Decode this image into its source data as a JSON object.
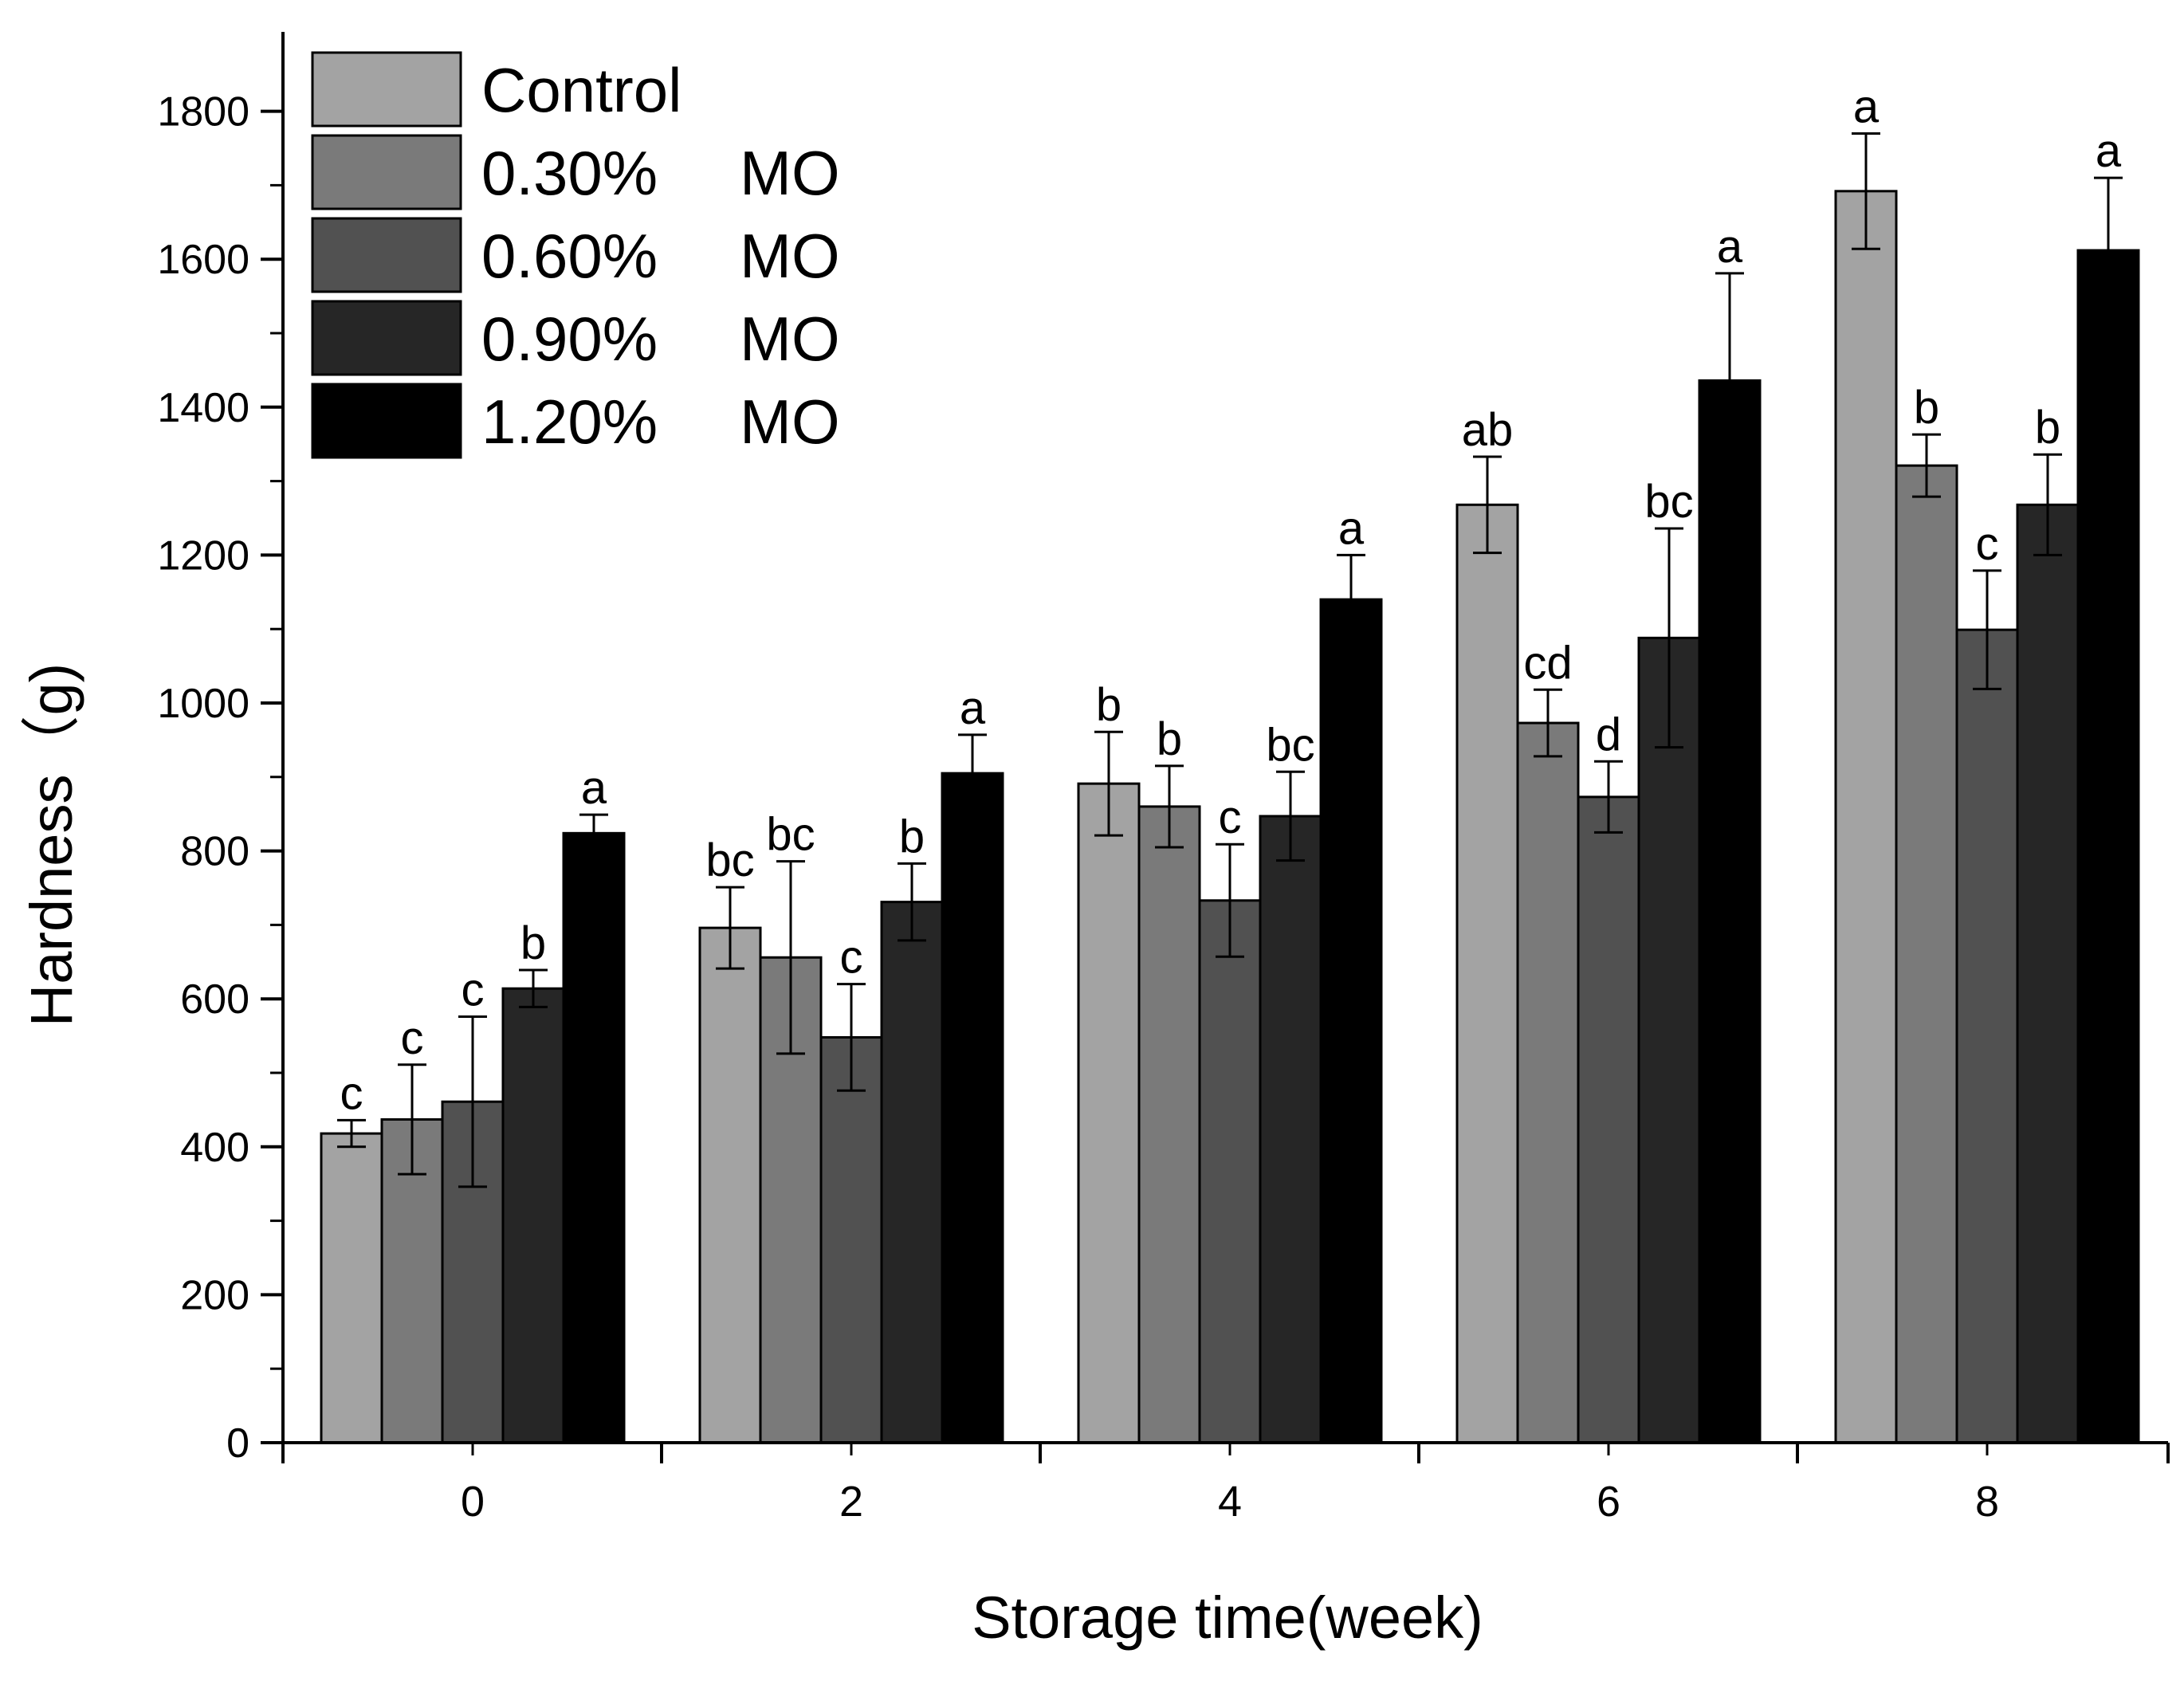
{
  "chart_data": {
    "type": "bar",
    "title": "",
    "xlabel": "Storage time(week)",
    "ylabel": "Hardness（g)",
    "categories": [
      "0",
      "2",
      "4",
      "6",
      "8"
    ],
    "ylim": [
      0,
      1900
    ],
    "yticks": [
      0,
      200,
      400,
      600,
      800,
      1000,
      1200,
      1400,
      1600,
      1800
    ],
    "legend_position": "top-left",
    "series": [
      {
        "name": "Control",
        "label_main": "Control",
        "label_suffix": "",
        "color": "#a3a3a3",
        "values": [
          418,
          696,
          891,
          1268,
          1692
        ],
        "errors": [
          18,
          55,
          70,
          65,
          78
        ],
        "letters": [
          "c",
          "bc",
          "b",
          "ab",
          "a"
        ]
      },
      {
        "name": "0.30%   MO",
        "label_main": "0.30%",
        "label_suffix": "MO",
        "color": "#7a7a7a",
        "values": [
          437,
          656,
          860,
          973,
          1321
        ],
        "errors": [
          74,
          130,
          55,
          45,
          42
        ],
        "letters": [
          "c",
          "bc",
          "b",
          "cd",
          "b"
        ]
      },
      {
        "name": "0.60%   MO",
        "label_main": "0.60%",
        "label_suffix": "MO",
        "color": "#515151",
        "values": [
          461,
          548,
          733,
          873,
          1099
        ],
        "errors": [
          115,
          72,
          76,
          48,
          80
        ],
        "letters": [
          "c",
          "c",
          "c",
          "d",
          "c"
        ]
      },
      {
        "name": "0.90%   MO",
        "label_main": "0.90%",
        "label_suffix": "MO",
        "color": "#262626",
        "values": [
          614,
          731,
          847,
          1088,
          1268
        ],
        "errors": [
          25,
          52,
          60,
          148,
          68
        ],
        "letters": [
          "b",
          "b",
          "bc",
          "bc",
          "b"
        ]
      },
      {
        "name": "1.20%   MO",
        "label_main": "1.20%",
        "label_suffix": "MO",
        "color": "#000000",
        "values": [
          824,
          905,
          1140,
          1436,
          1612
        ],
        "errors": [
          25,
          52,
          60,
          145,
          98
        ],
        "letters": [
          "a",
          "a",
          "a",
          "a",
          "a"
        ]
      }
    ]
  }
}
